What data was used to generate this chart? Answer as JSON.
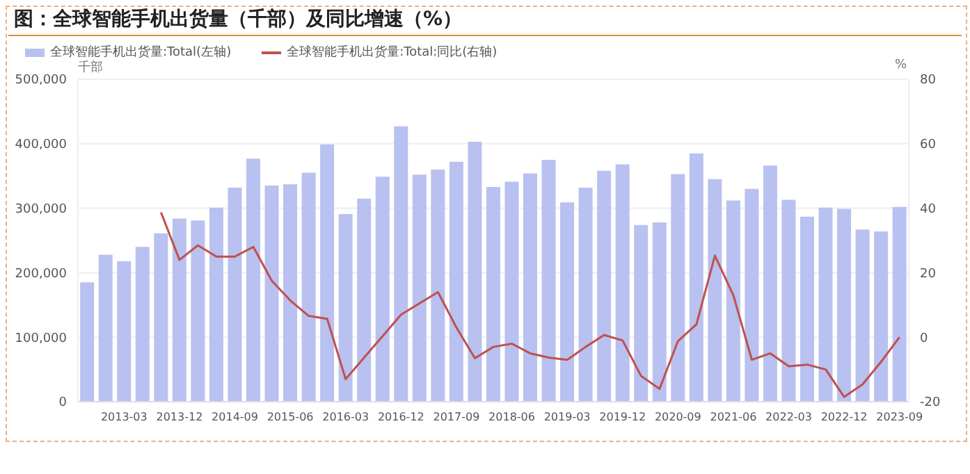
{
  "chart_data": {
    "type": "bar",
    "title": "图：全球智能手机出货量（千部）及同比增速（%）",
    "ylabel": "千部",
    "y2label": "%",
    "categories": [
      null,
      null,
      "2013-03",
      null,
      null,
      "2013-12",
      null,
      null,
      "2014-09",
      null,
      null,
      "2015-06",
      null,
      null,
      "2016-03",
      null,
      null,
      "2016-12",
      null,
      null,
      "2017-09",
      null,
      null,
      "2018-06",
      null,
      null,
      "2019-03",
      null,
      null,
      "2019-12",
      null,
      null,
      "2020-09",
      null,
      null,
      "2021-06",
      null,
      null,
      "2022-03",
      null,
      null,
      "2022-12",
      null,
      null,
      "2023-09"
    ],
    "series": [
      {
        "name": "全球智能手机出货量:Total(左轴)",
        "color": "#b8c1f0",
        "values": [
          185000,
          228000,
          218000,
          240000,
          261000,
          284000,
          281000,
          301000,
          332000,
          377000,
          335000,
          337000,
          355000,
          399000,
          291000,
          315000,
          349000,
          427000,
          352000,
          360000,
          372000,
          403000,
          333000,
          341000,
          354000,
          375000,
          309000,
          332000,
          358000,
          368000,
          274000,
          278000,
          353000,
          385000,
          345000,
          312000,
          330000,
          366000,
          313000,
          287000,
          301000,
          299000,
          267000,
          264000,
          302000
        ]
      },
      {
        "name": "全球智能手机出货量:Total:同比(右轴)",
        "type": "line",
        "axis": "y2",
        "color": "#c0504d",
        "values": [
          null,
          null,
          null,
          null,
          38.7,
          24,
          28.5,
          25,
          25,
          28,
          17.5,
          11.4,
          6.6,
          5.7,
          -13,
          -6.3,
          0.3,
          7,
          10.5,
          14,
          3,
          -6.5,
          -3,
          -2,
          -5,
          -6.3,
          -7,
          -3,
          0.7,
          -1,
          -12,
          -16,
          -1.2,
          4,
          25.3,
          13,
          -7,
          -5,
          -9,
          -8.5,
          -10,
          -18.5,
          -14.6,
          -7.6,
          0
        ]
      }
    ],
    "ylim": [
      0,
      500000
    ],
    "yticks": [
      {
        "value": 0,
        "label": "0"
      },
      {
        "value": 100000,
        "label": "100,000"
      },
      {
        "value": 200000,
        "label": "200,000"
      },
      {
        "value": 300000,
        "label": "300,000"
      },
      {
        "value": 400000,
        "label": "400,000"
      },
      {
        "value": 500000,
        "label": "500,000"
      }
    ],
    "y2lim": [
      -20,
      80
    ],
    "y2ticks": [
      -20,
      0,
      20,
      40,
      60,
      80
    ],
    "grid": "y",
    "legend": "top left",
    "marker": "none",
    "line_style": "solid"
  }
}
